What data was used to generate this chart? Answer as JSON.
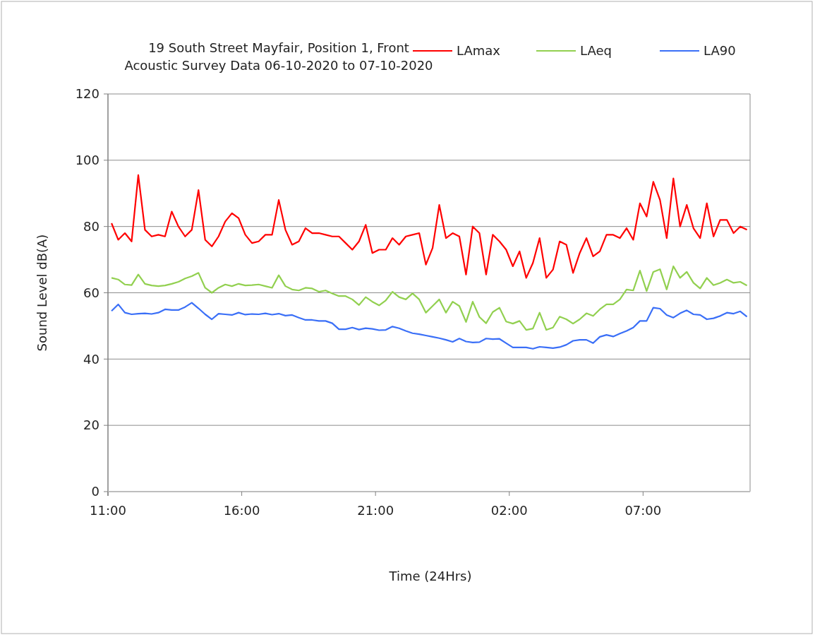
{
  "chart_data": {
    "type": "line",
    "title": "19 South Street Mayfair, Position 1, Front\nAcoustic Survey Data 06-10-2020 to 07-10-2020",
    "xlabel": "Time (24Hrs)",
    "ylabel": "Sound Level dB(A)",
    "x": [
      "2020-10-06T11:08",
      "2020-10-06T11:23",
      "2020-10-06T11:38",
      "2020-10-06T11:53",
      "2020-10-06T12:08",
      "2020-10-06T12:23",
      "2020-10-06T12:38",
      "2020-10-06T12:53",
      "2020-10-06T13:08",
      "2020-10-06T13:23",
      "2020-10-06T13:38",
      "2020-10-06T13:53",
      "2020-10-06T14:08",
      "2020-10-06T14:23",
      "2020-10-06T14:38",
      "2020-10-06T14:53",
      "2020-10-06T15:08",
      "2020-10-06T15:23",
      "2020-10-06T15:38",
      "2020-10-06T15:53",
      "2020-10-06T16:08",
      "2020-10-06T16:23",
      "2020-10-06T16:38",
      "2020-10-06T16:53",
      "2020-10-06T17:08",
      "2020-10-06T17:23",
      "2020-10-06T17:38",
      "2020-10-06T17:53",
      "2020-10-06T18:08",
      "2020-10-06T18:23",
      "2020-10-06T18:38",
      "2020-10-06T18:53",
      "2020-10-06T19:08",
      "2020-10-06T19:23",
      "2020-10-06T19:38",
      "2020-10-06T19:53",
      "2020-10-06T20:08",
      "2020-10-06T20:23",
      "2020-10-06T20:38",
      "2020-10-06T20:53",
      "2020-10-06T21:08",
      "2020-10-06T21:23",
      "2020-10-06T21:38",
      "2020-10-06T21:53",
      "2020-10-06T22:08",
      "2020-10-06T22:23",
      "2020-10-06T22:38",
      "2020-10-06T22:53",
      "2020-10-06T23:08",
      "2020-10-06T23:23",
      "2020-10-06T23:38",
      "2020-10-06T23:53",
      "2020-10-07T00:08",
      "2020-10-07T00:23",
      "2020-10-07T00:38",
      "2020-10-07T00:53",
      "2020-10-07T01:08",
      "2020-10-07T01:23",
      "2020-10-07T01:38",
      "2020-10-07T01:53",
      "2020-10-07T02:08",
      "2020-10-07T02:23",
      "2020-10-07T02:38",
      "2020-10-07T02:53",
      "2020-10-07T03:08",
      "2020-10-07T03:23",
      "2020-10-07T03:38",
      "2020-10-07T03:53",
      "2020-10-07T04:08",
      "2020-10-07T04:23",
      "2020-10-07T04:38",
      "2020-10-07T04:53",
      "2020-10-07T05:08",
      "2020-10-07T05:23",
      "2020-10-07T05:38",
      "2020-10-07T05:53",
      "2020-10-07T06:08",
      "2020-10-07T06:23",
      "2020-10-07T06:38",
      "2020-10-07T06:53",
      "2020-10-07T07:08",
      "2020-10-07T07:23",
      "2020-10-07T07:38",
      "2020-10-07T07:53",
      "2020-10-07T08:08",
      "2020-10-07T08:23",
      "2020-10-07T08:38",
      "2020-10-07T08:53",
      "2020-10-07T09:08",
      "2020-10-07T09:23",
      "2020-10-07T09:38",
      "2020-10-07T09:53",
      "2020-10-07T10:08",
      "2020-10-07T10:23",
      "2020-10-07T10:38",
      "2020-10-07T10:53"
    ],
    "series": [
      {
        "name": "LAmax",
        "color": "#ff0000",
        "values": [
          81,
          76,
          78,
          75.5,
          95.5,
          79,
          77,
          77.5,
          77,
          84.5,
          80,
          77,
          79,
          91,
          76,
          74,
          77,
          81.5,
          84,
          82.5,
          77.5,
          75,
          75.5,
          77.5,
          77.5,
          88,
          79,
          74.5,
          75.5,
          79.5,
          78,
          78,
          77.5,
          77,
          77,
          75,
          73,
          75.5,
          80.5,
          72,
          73,
          73,
          76.5,
          74.5,
          77,
          77.5,
          78,
          68.5,
          73.5,
          86.5,
          76.5,
          78,
          77,
          65.5,
          80,
          78,
          65.5,
          77.5,
          75.5,
          73,
          68,
          72.5,
          64.5,
          69,
          76.5,
          64.5,
          67,
          75.5,
          74.5,
          66,
          72,
          76.5,
          71,
          72.5,
          77.5,
          77.5,
          76.5,
          79.5,
          76,
          87,
          83,
          93.5,
          88,
          76.5,
          94.5,
          80,
          86.5,
          79.5,
          76.5,
          87,
          77,
          82,
          82,
          78,
          80,
          79
        ]
      },
      {
        "name": "LAeq",
        "color": "#92d050",
        "values": [
          64.5,
          64,
          62.5,
          62.3,
          65.5,
          62.7,
          62.2,
          62,
          62.2,
          62.7,
          63.3,
          64.3,
          65,
          66,
          61.5,
          60,
          61.5,
          62.5,
          62,
          62.7,
          62.2,
          62.3,
          62.5,
          62,
          61.5,
          65.3,
          62,
          61,
          60.7,
          61.5,
          61.3,
          60.3,
          60.7,
          59.8,
          59,
          59,
          58,
          56.3,
          58.7,
          57.3,
          56.2,
          57.7,
          60.3,
          58.7,
          58,
          59.8,
          58,
          54,
          56,
          58,
          54,
          57.3,
          56,
          51.2,
          57.3,
          52.7,
          50.8,
          54.2,
          55.5,
          51.3,
          50.7,
          51.5,
          48.8,
          49.2,
          54,
          48.8,
          49.5,
          52.8,
          52,
          50.7,
          52,
          53.8,
          53,
          55,
          56.5,
          56.5,
          58,
          61,
          60.7,
          66.7,
          60.5,
          66.3,
          67.1,
          61,
          68,
          64.5,
          66.3,
          63,
          61.3,
          64.5,
          62.3,
          63,
          64,
          63,
          63.3,
          62.2
        ]
      },
      {
        "name": "LA90",
        "color": "#3a6ff7",
        "values": [
          54.5,
          56.5,
          54,
          53.5,
          53.7,
          53.8,
          53.6,
          54,
          55,
          54.8,
          54.8,
          55.7,
          57,
          55.3,
          53.5,
          52,
          53.7,
          53.5,
          53.3,
          54,
          53.4,
          53.6,
          53.5,
          53.8,
          53.4,
          53.7,
          53.1,
          53.3,
          52.5,
          51.8,
          51.8,
          51.5,
          51.5,
          50.8,
          49,
          49,
          49.5,
          48.9,
          49.3,
          49.1,
          48.7,
          48.8,
          49.8,
          49.3,
          48.5,
          47.8,
          47.5,
          47.1,
          46.7,
          46.3,
          45.8,
          45.2,
          46.2,
          45.3,
          45,
          45.1,
          46.2,
          46,
          46.1,
          44.8,
          43.5,
          43.5,
          43.5,
          43.1,
          43.7,
          43.5,
          43.3,
          43.6,
          44.3,
          45.5,
          45.8,
          45.8,
          44.8,
          46.7,
          47.3,
          46.8,
          47.7,
          48.5,
          49.5,
          51.5,
          51.5,
          55.5,
          55.2,
          53.3,
          52.5,
          53.8,
          54.7,
          53.5,
          53.3,
          52,
          52.3,
          53,
          54,
          53.7,
          54.4,
          52.8
        ]
      }
    ],
    "xlim": [
      "2020-10-06T11:00",
      "2020-10-07T11:00"
    ],
    "xticks": [
      {
        "value": "2020-10-06T11:00",
        "label": "11:00"
      },
      {
        "value": "2020-10-06T16:00",
        "label": "16:00"
      },
      {
        "value": "2020-10-06T21:00",
        "label": "21:00"
      },
      {
        "value": "2020-10-07T02:00",
        "label": "02:00"
      },
      {
        "value": "2020-10-07T07:00",
        "label": "07:00"
      }
    ],
    "ylim": [
      0,
      120
    ],
    "yticks": [
      0,
      20,
      40,
      60,
      80,
      100,
      120
    ],
    "grid": "y",
    "legend": "top right",
    "marker": "none",
    "line_style": "solid"
  }
}
